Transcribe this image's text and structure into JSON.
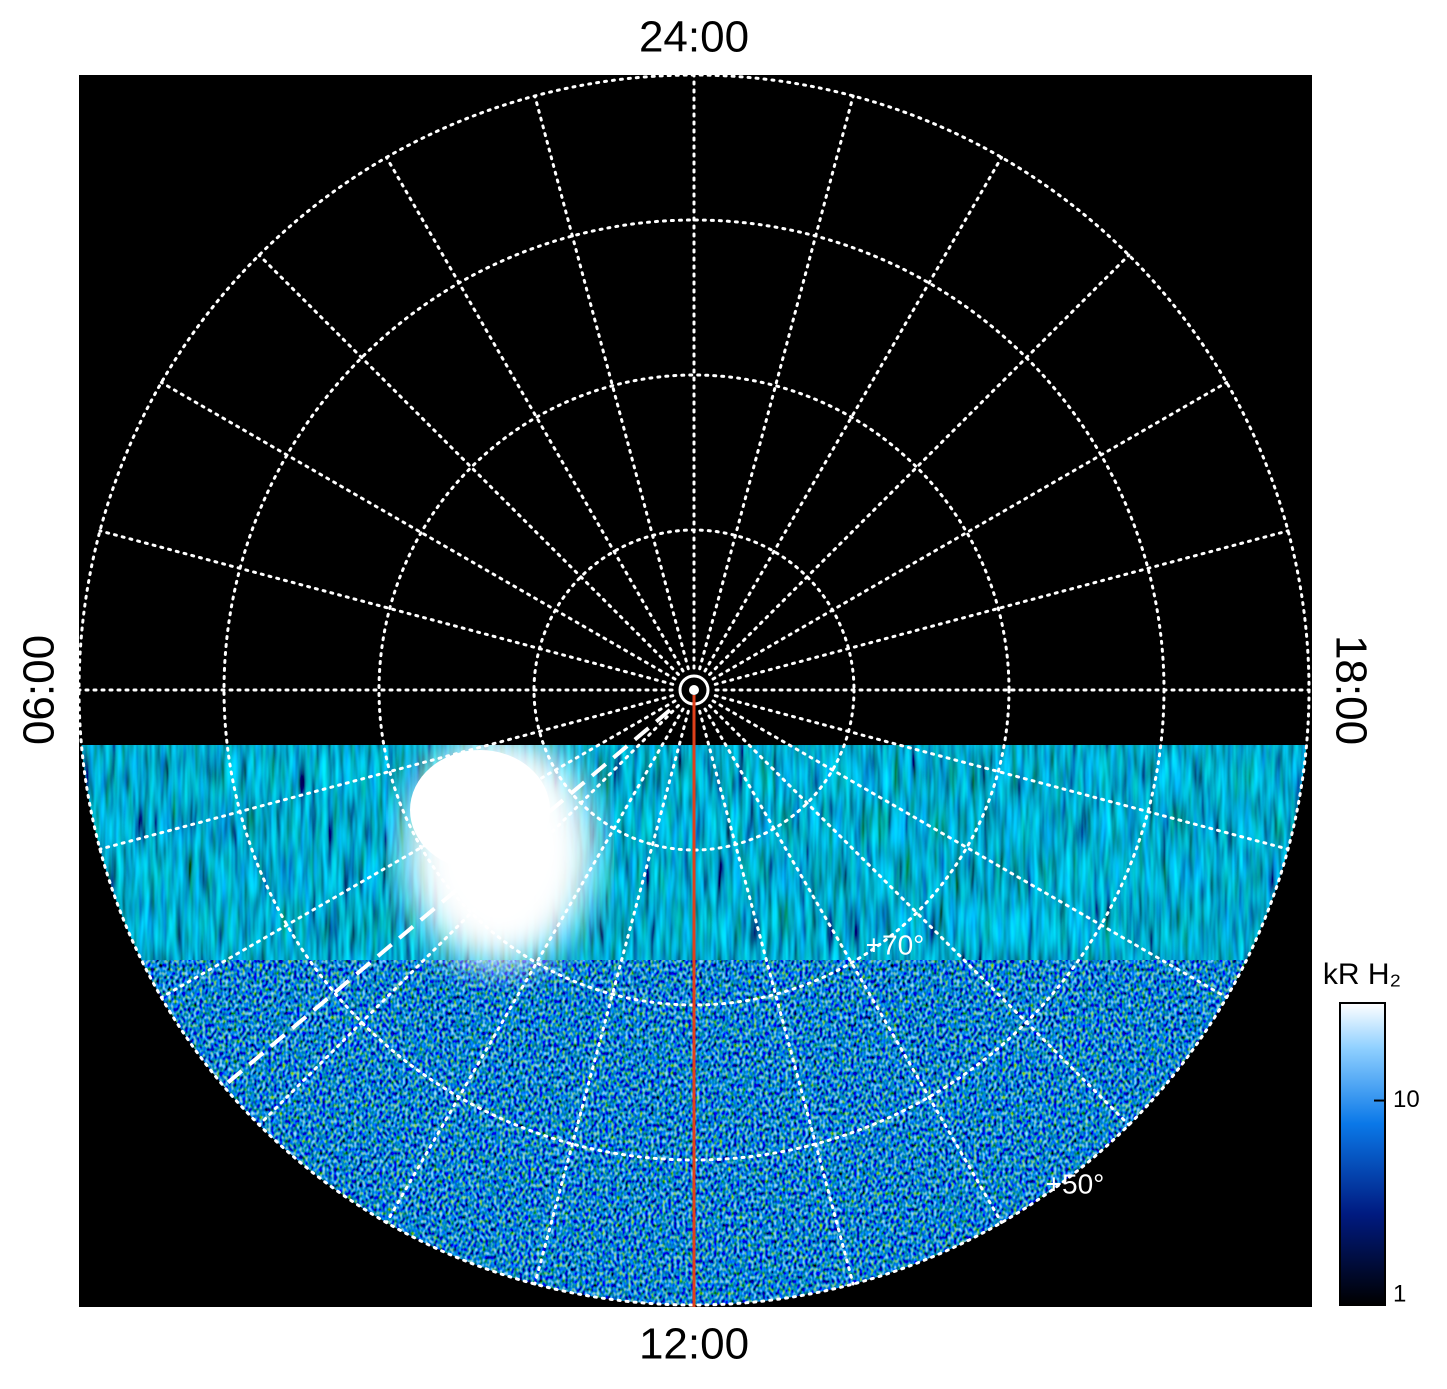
{
  "chart_data": {
    "type": "polar-image",
    "local_time_labels": {
      "top": "24:00",
      "left": "06:00",
      "right": "18:00",
      "bottom": "12:00"
    },
    "latitude_labels": [
      "+70°",
      "+50°"
    ],
    "colorbar": {
      "label": "kR H₂",
      "scale": "log",
      "lim": [
        1,
        30
      ],
      "ticks": [
        1,
        10
      ]
    }
  }
}
